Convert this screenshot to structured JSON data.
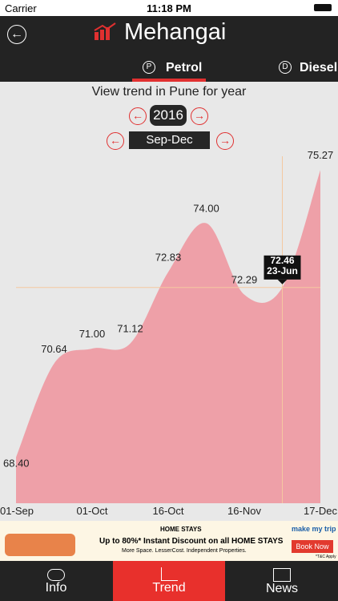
{
  "status_bar": {
    "carrier": "Carrier",
    "time": "11:18 PM"
  },
  "header": {
    "title": "Mehangai"
  },
  "tabs": [
    {
      "icon": "P",
      "label": "Petrol"
    },
    {
      "icon": "D",
      "label": "Diesel"
    }
  ],
  "subtitle": "View trend in Pune for year",
  "year": "2016",
  "period": "Sep-Dec",
  "chart_data": {
    "type": "area",
    "categories": [
      "01-Sep",
      null,
      "01-Oct",
      null,
      "16-Oct",
      null,
      "16-Nov",
      null,
      "17-Dec"
    ],
    "values": [
      68.4,
      70.64,
      71.0,
      71.12,
      72.83,
      74.0,
      72.29,
      72.46,
      75.27
    ],
    "value_labels": [
      "68.40",
      "70.64",
      "71.00",
      "71.12",
      "72.83",
      "74.00",
      "72.29",
      "72.46",
      "75.27"
    ],
    "tooltip_date": "23-Jun",
    "color": "#eea0a8",
    "ylim": [
      67.3,
      75.6
    ]
  },
  "ad": {
    "tag": "HOME STAYS",
    "headline": "Up to 80%* Instant Discount on all HOME STAYS",
    "subline": "More Space. LesserCost. Independent Properties.",
    "brand": "make my trip",
    "button": "Book Now",
    "note": "*T&C Apply"
  },
  "bottom_tabs": [
    "Info",
    "Trend",
    "News"
  ]
}
